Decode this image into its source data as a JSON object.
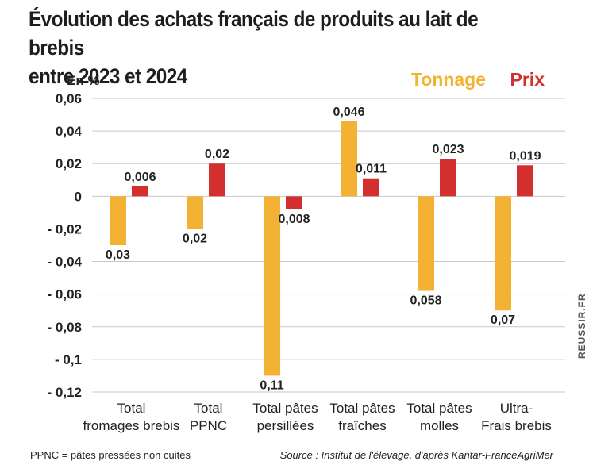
{
  "title_line1": "Évolution des achats français de produits au lait de brebis",
  "title_line2": "entre 2023 et 2024",
  "footnote": "PPNC = pâtes pressées non cuites",
  "source": "Source : Institut de l'élevage, d'après Kantar-FranceAgriMer",
  "brand": "REUSSIR.FR",
  "colors": {
    "tonnage": "#f4b234",
    "prix": "#d42f2f",
    "grid": "#c8c8c8",
    "text": "#222222"
  },
  "chart_data": {
    "type": "bar",
    "ylabel": "En %",
    "ylim": [
      -0.12,
      0.06
    ],
    "yticks": [
      0.06,
      0.04,
      0.02,
      0,
      -0.02,
      -0.04,
      -0.06,
      -0.08,
      -0.1,
      -0.12
    ],
    "ytick_labels": [
      "0,06",
      "0,04",
      "0,02",
      "0",
      "- 0,02",
      "- 0,04",
      "- 0,06",
      "- 0,08",
      "- 0,1",
      "- 0,12"
    ],
    "grid": true,
    "legend_position": "top-right",
    "categories": [
      [
        "Total",
        "fromages brebis"
      ],
      [
        "Total",
        "PPNC"
      ],
      [
        "Total pâtes",
        "persillées"
      ],
      [
        "Total pâtes",
        "fraîches"
      ],
      [
        "Total pâtes",
        "molles"
      ],
      [
        "Ultra-",
        "Frais brebis"
      ]
    ],
    "series": [
      {
        "name": "Tonnage",
        "values": [
          -0.03,
          -0.02,
          -0.11,
          0.046,
          -0.058,
          -0.07
        ],
        "labels": [
          "0,03",
          "0,02",
          "0,11",
          "0,046",
          "0,058",
          "0,07"
        ]
      },
      {
        "name": "Prix",
        "values": [
          0.006,
          0.02,
          -0.008,
          0.011,
          0.023,
          0.019
        ],
        "labels": [
          "0,006",
          "0,02",
          "0,008",
          "0,011",
          "0,023",
          "0,019"
        ]
      }
    ]
  }
}
